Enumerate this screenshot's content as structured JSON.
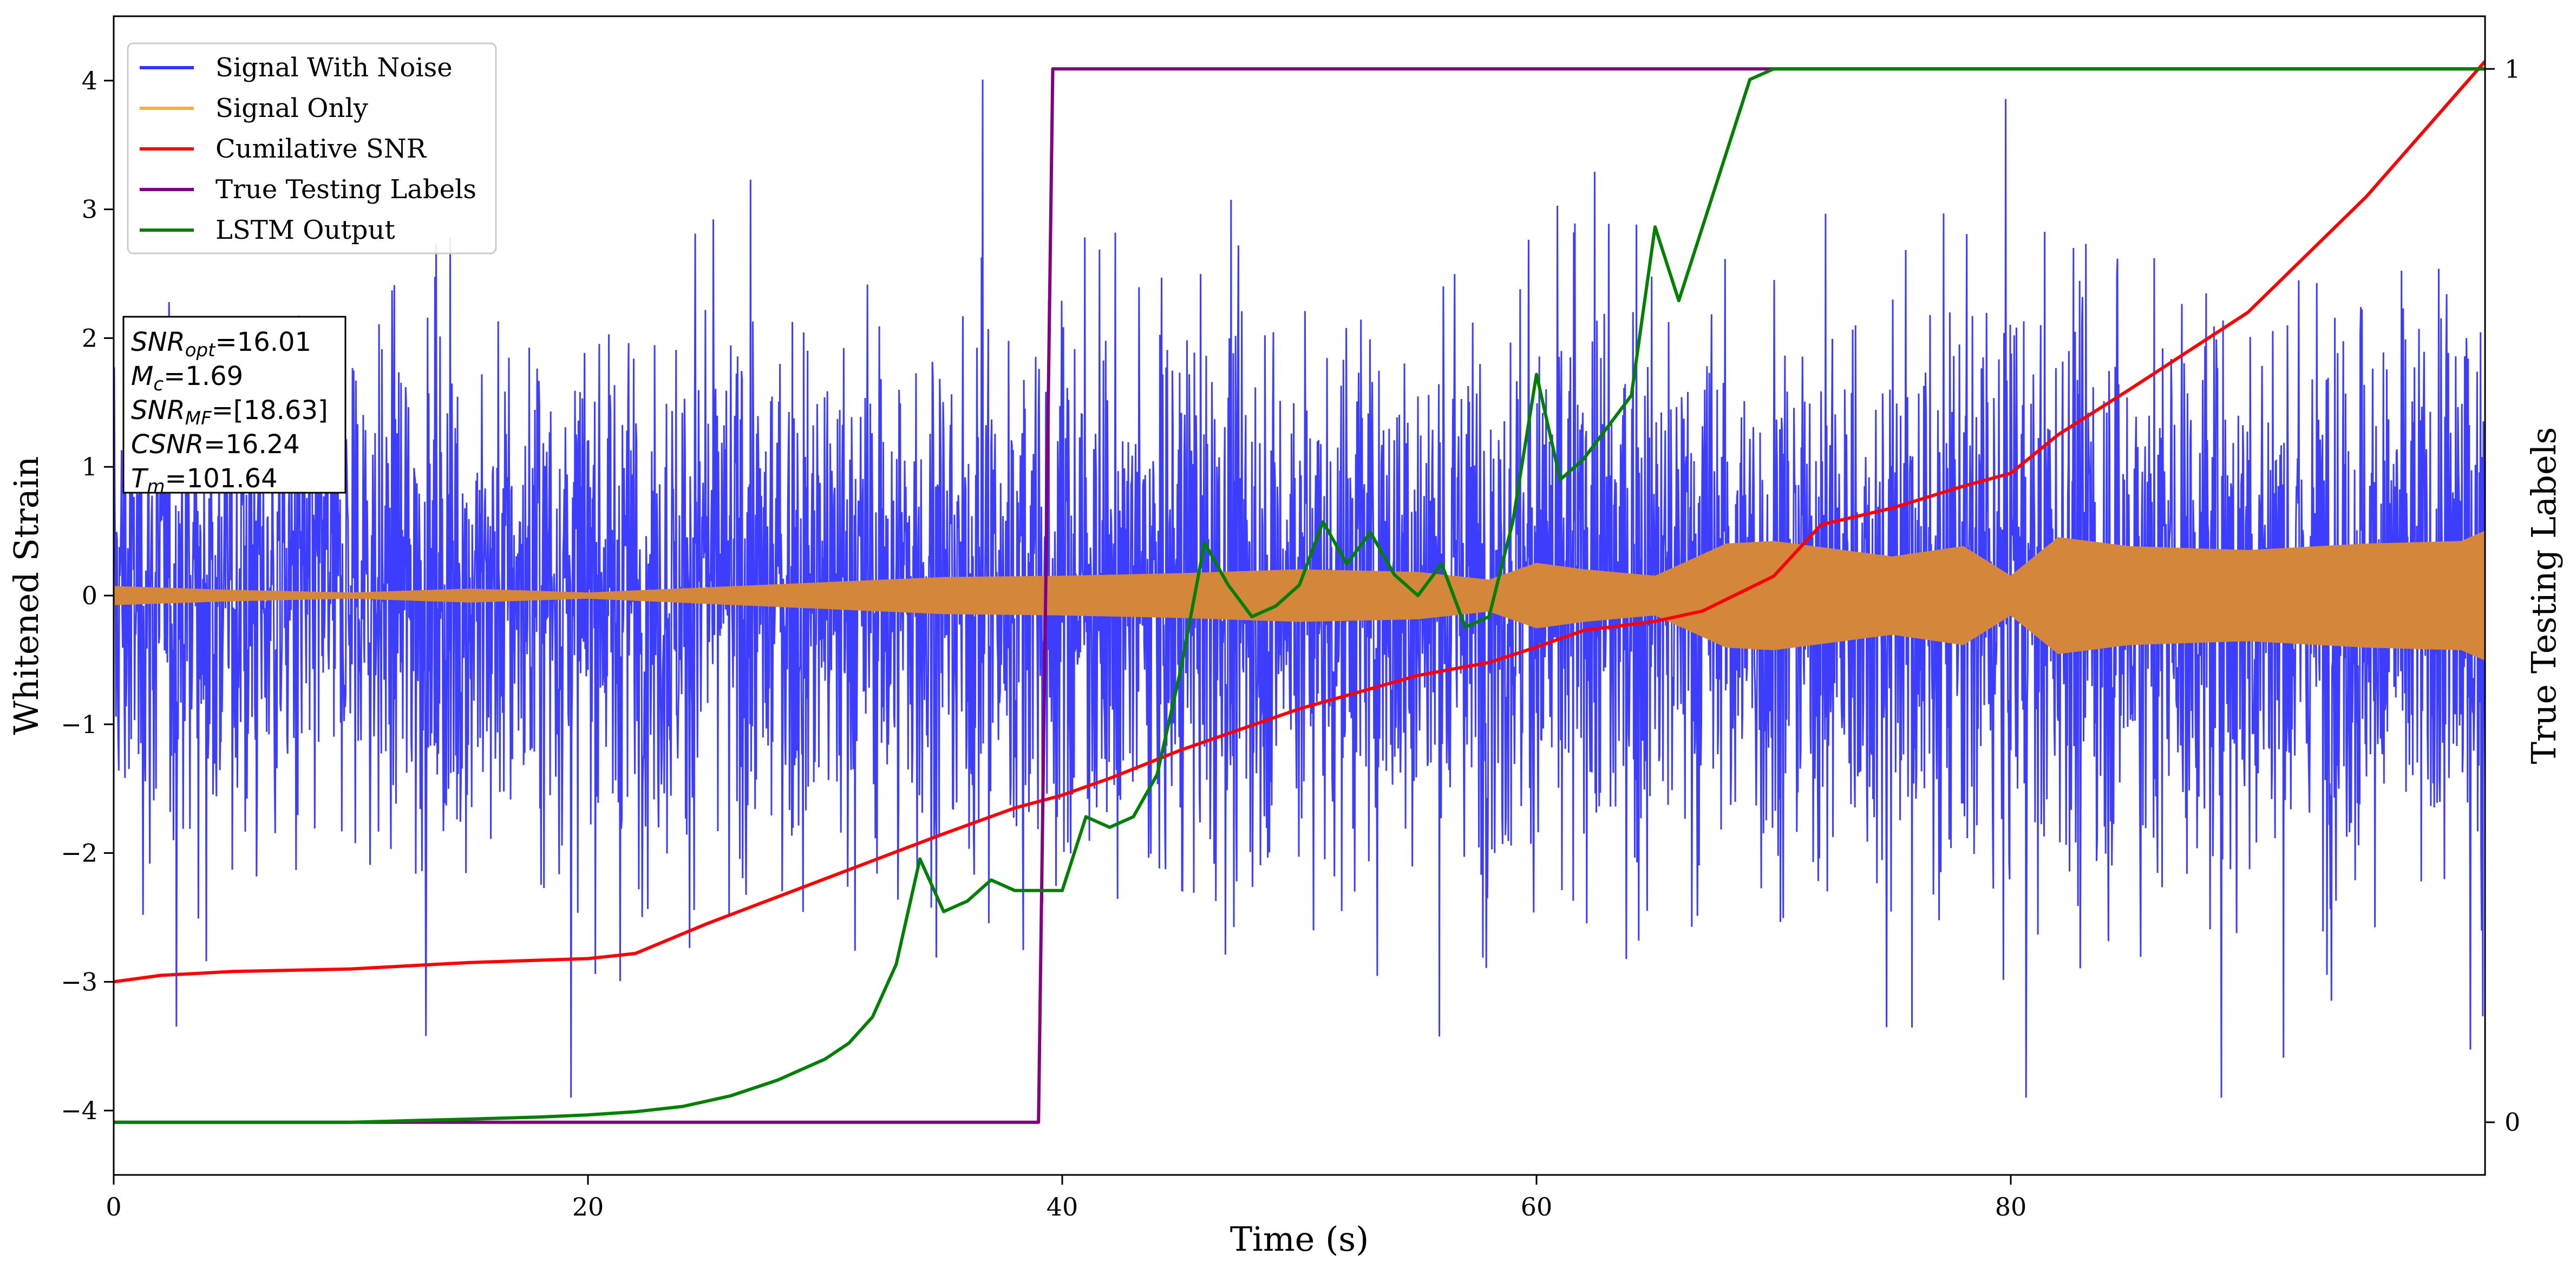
{
  "chart_data": {
    "type": "line",
    "xlabel": "Time (s)",
    "ylabel": "Whitened Strain",
    "y2label": "True Testing Labels",
    "xlim": [
      0,
      100
    ],
    "ylim": [
      -4.5,
      4.5
    ],
    "y2lim": [
      -0.05,
      1.05
    ],
    "xticks": [
      0,
      20,
      40,
      60,
      80
    ],
    "yticks": [
      -4,
      -3,
      -2,
      -1,
      0,
      1,
      2,
      3,
      4
    ],
    "y2ticks": [
      0,
      1
    ],
    "grid": false,
    "legend_position": "top-left",
    "legend": [
      {
        "label": "Signal With Noise",
        "color": "#3333ff"
      },
      {
        "label": "Signal Only",
        "color": "#f5b041"
      },
      {
        "label": "Cumilative SNR",
        "color": "#ff0000"
      },
      {
        "label": "True Testing Labels",
        "color": "#800080"
      },
      {
        "label": "LSTM Output",
        "color": "#008000"
      }
    ],
    "annotation": {
      "lines": [
        {
          "symbol": "SNR",
          "sub": "opt",
          "value": "=16.01"
        },
        {
          "symbol": "M",
          "sub": "c",
          "value": "=1.69"
        },
        {
          "symbol": "SNR",
          "sub": "MF",
          "value": "=[18.63]"
        },
        {
          "symbol": "CSNR",
          "sub": "",
          "value": "=16.24"
        },
        {
          "symbol": "T",
          "sub": "m",
          "value": "=101.64"
        }
      ]
    },
    "series": [
      {
        "name": "Signal With Noise",
        "color": "#3333ff",
        "axis": "left",
        "style": "dense-noise",
        "envelope": {
          "x": [
            0,
            100
          ],
          "upper": [
            2.5,
            3.0
          ],
          "lower": [
            -2.5,
            -3.0
          ]
        }
      },
      {
        "name": "Signal Only",
        "color": "#d4873a",
        "axis": "left",
        "style": "filled-envelope",
        "x": [
          0,
          5,
          10,
          15,
          20,
          25,
          30,
          35,
          40,
          45,
          50,
          55,
          58,
          60,
          62,
          65,
          68,
          70,
          75,
          78,
          80,
          82,
          85,
          90,
          95,
          99,
          100
        ],
        "amplitude": [
          0.07,
          0.04,
          0.02,
          0.05,
          0.02,
          0.06,
          0.1,
          0.14,
          0.15,
          0.17,
          0.2,
          0.18,
          0.12,
          0.25,
          0.2,
          0.15,
          0.4,
          0.42,
          0.3,
          0.38,
          0.15,
          0.45,
          0.38,
          0.35,
          0.4,
          0.42,
          0.5
        ]
      },
      {
        "name": "Cumilative SNR",
        "color": "#ff0000",
        "axis": "left",
        "x": [
          0,
          2,
          5,
          10,
          15,
          20,
          22,
          25,
          30,
          35,
          38,
          40,
          42,
          45,
          50,
          55,
          58,
          60,
          62,
          65,
          67,
          70,
          72,
          75,
          78,
          80,
          82,
          85,
          90,
          95,
          100
        ],
        "y": [
          -3.0,
          -2.95,
          -2.92,
          -2.9,
          -2.85,
          -2.82,
          -2.78,
          -2.55,
          -2.2,
          -1.85,
          -1.65,
          -1.55,
          -1.42,
          -1.2,
          -0.88,
          -0.62,
          -0.52,
          -0.4,
          -0.27,
          -0.2,
          -0.12,
          0.15,
          0.55,
          0.68,
          0.85,
          0.95,
          1.25,
          1.6,
          2.2,
          3.1,
          4.15
        ]
      },
      {
        "name": "True Testing Labels",
        "color": "#800080",
        "axis": "right",
        "x": [
          0,
          39.0,
          39.6,
          100
        ],
        "y": [
          0,
          0,
          1,
          1
        ]
      },
      {
        "name": "LSTM Output",
        "color": "#008000",
        "axis": "right",
        "x": [
          0,
          10,
          15,
          18,
          20,
          22,
          24,
          26,
          28,
          30,
          31,
          32,
          33,
          34,
          35,
          36,
          37,
          38,
          39,
          40,
          41,
          42,
          43,
          44,
          45,
          46,
          47,
          48,
          49,
          50,
          51,
          52,
          53,
          54,
          55,
          56,
          57,
          58,
          59,
          60,
          61,
          62,
          63,
          64,
          65,
          66,
          67,
          68,
          69,
          70,
          72,
          74,
          80,
          90,
          100
        ],
        "y": [
          0,
          0,
          0.003,
          0.005,
          0.007,
          0.01,
          0.015,
          0.025,
          0.04,
          0.06,
          0.075,
          0.1,
          0.15,
          0.25,
          0.2,
          0.21,
          0.23,
          0.22,
          0.22,
          0.22,
          0.29,
          0.28,
          0.29,
          0.33,
          0.43,
          0.55,
          0.51,
          0.48,
          0.49,
          0.51,
          0.57,
          0.53,
          0.56,
          0.52,
          0.5,
          0.53,
          0.47,
          0.48,
          0.57,
          0.71,
          0.61,
          0.63,
          0.66,
          0.69,
          0.85,
          0.78,
          0.85,
          0.92,
          0.99,
          1.0,
          1.0,
          1.0,
          1.0,
          1.0,
          1.0
        ]
      }
    ]
  }
}
